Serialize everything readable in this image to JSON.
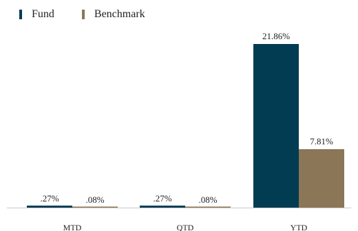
{
  "chart_data": {
    "type": "bar",
    "categories": [
      "MTD",
      "QTD",
      "YTD"
    ],
    "series": [
      {
        "name": "Fund",
        "values": [
          0.27,
          0.27,
          21.86
        ],
        "labels": [
          ".27%",
          ".27%",
          "21.86%"
        ],
        "color": "#013c52"
      },
      {
        "name": "Benchmark",
        "values": [
          0.08,
          0.08,
          7.81
        ],
        "labels": [
          ".08%",
          ".08%",
          "7.81%"
        ],
        "color": "#8b7657"
      }
    ],
    "ylim": [
      0,
      22
    ],
    "grid": false,
    "legend_position": "top-left",
    "axis_color": "#c9c9c9"
  }
}
